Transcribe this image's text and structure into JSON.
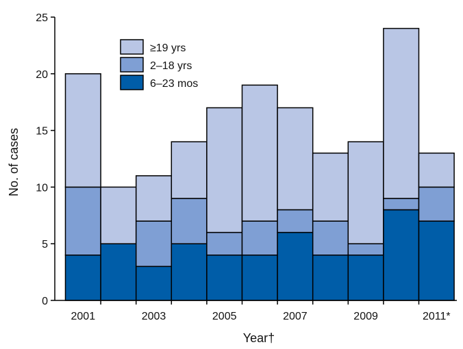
{
  "chart_data": {
    "type": "bar",
    "stacked": true,
    "categories": [
      "2001",
      "2002",
      "2003",
      "2004",
      "2005",
      "2006",
      "2007",
      "2008",
      "2009",
      "2010",
      "2011*"
    ],
    "x_tick_labels": [
      "2001",
      "",
      "2003",
      "",
      "2005",
      "",
      "2007",
      "",
      "2009",
      "",
      "2011*"
    ],
    "series": [
      {
        "name": "6–23 mos",
        "color": "#005da8",
        "values": [
          4,
          5,
          3,
          5,
          4,
          4,
          6,
          4,
          4,
          8,
          7
        ]
      },
      {
        "name": "2–18 yrs",
        "color": "#7f9fd4",
        "values": [
          6,
          0,
          4,
          4,
          2,
          3,
          2,
          3,
          1,
          1,
          3
        ]
      },
      {
        "name": "≥19 yrs",
        "color": "#b9c6e5",
        "values": [
          10,
          5,
          4,
          5,
          11,
          12,
          9,
          6,
          9,
          15,
          3
        ]
      }
    ],
    "legend_order": [
      "≥19 yrs",
      "2–18 yrs",
      "6–23 mos"
    ],
    "legend_position": "top-left",
    "xlabel": "Year†",
    "ylabel": "No. of cases",
    "ylim": [
      0,
      25
    ],
    "yticks": [
      0,
      5,
      10,
      15,
      20,
      25
    ],
    "grid": false
  }
}
